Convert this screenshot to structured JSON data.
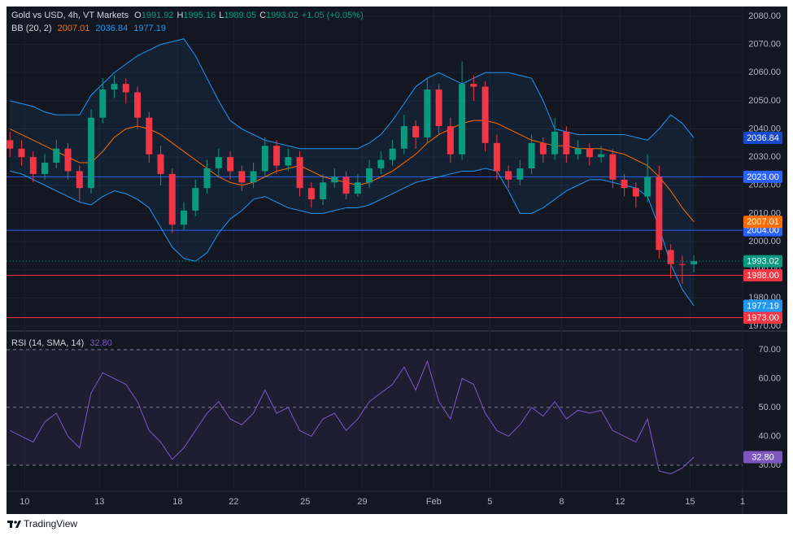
{
  "chart_data": {
    "type": "candlestick",
    "title": "Gold vs USD, 4h, VT Markets",
    "ohlc_legend": {
      "labels": [
        "O",
        "H",
        "L",
        "C"
      ],
      "change": "+1.05 (+0.05%)"
    },
    "bb_label": "BB (20, 2)",
    "rsi_label": "RSI (14, SMA, 14)",
    "brand": "TradingView",
    "xlim": [
      -0.3,
      63.2
    ],
    "xticks": [
      {
        "value": 1.26,
        "label": "10"
      },
      {
        "value": 7.72,
        "label": "13"
      },
      {
        "value": 14.46,
        "label": "18"
      },
      {
        "value": 19.3,
        "label": "22"
      },
      {
        "value": 25.47,
        "label": "25"
      },
      {
        "value": 30.39,
        "label": "29"
      },
      {
        "value": 36.56,
        "label": "Feb"
      },
      {
        "value": 41.4,
        "label": "5"
      },
      {
        "value": 47.58,
        "label": "8"
      },
      {
        "value": 52.63,
        "label": "12"
      },
      {
        "value": 58.67,
        "label": "15"
      },
      {
        "value": 63.2,
        "label": "1"
      }
    ],
    "ylim": [
      1968.8,
      2082.9
    ],
    "yticks": [
      {
        "value": 1970,
        "label": "1970.00"
      },
      {
        "value": 1980,
        "label": "1980.00"
      },
      {
        "value": 1990,
        "label": "1990.00"
      },
      {
        "value": 2000,
        "label": "2000.00"
      },
      {
        "value": 2010,
        "label": "2010.00"
      },
      {
        "value": 2020,
        "label": "2020.00"
      },
      {
        "value": 2030,
        "label": "2030.00"
      },
      {
        "value": 2040,
        "label": "2040.00"
      },
      {
        "value": 2050,
        "label": "2050.00"
      },
      {
        "value": 2060,
        "label": "2060.00"
      },
      {
        "value": 2070,
        "label": "2070.00"
      },
      {
        "value": 2080,
        "label": "2080.00"
      }
    ],
    "up_color": "#089981",
    "down_color": "#f23645",
    "candles": {
      "open": [
        2036,
        2033,
        2030,
        2024,
        2028,
        2033,
        2025,
        2019,
        2044,
        2054,
        2056,
        2053,
        2044,
        2031,
        2024,
        2006,
        2011,
        2019,
        2026,
        2030,
        2025,
        2021,
        2025,
        2034,
        2027,
        2030,
        2019,
        2015,
        2021,
        2023,
        2017,
        2021,
        2026,
        2029,
        2033,
        2041,
        2037,
        2054,
        2041,
        2031,
        2056,
        2055,
        2035,
        2025,
        2022,
        2026,
        2035,
        2031,
        2039,
        2031,
        2033,
        2030,
        2031,
        2022,
        2019,
        2016,
        2023,
        1997,
        1992,
        1991.92
      ],
      "high": [
        2039,
        2036,
        2032,
        2031,
        2036,
        2035,
        2027,
        2047,
        2058,
        2059,
        2058,
        2055,
        2046,
        2034,
        2026,
        2014,
        2022,
        2029,
        2033,
        2032,
        2027,
        2028,
        2037,
        2036,
        2033,
        2032,
        2021,
        2024,
        2026,
        2025,
        2024,
        2029,
        2032,
        2036,
        2045,
        2043,
        2058,
        2056,
        2044,
        2064,
        2059,
        2057,
        2038,
        2027,
        2029,
        2038,
        2037,
        2044,
        2041,
        2036,
        2035,
        2034,
        2033,
        2024,
        2021,
        2031,
        2027,
        1999,
        1995,
        1995.16
      ],
      "low": [
        2030,
        2027,
        2021,
        2022,
        2026,
        2022,
        2014,
        2017,
        2042,
        2051,
        2049,
        2040,
        2028,
        2020,
        2003,
        2004,
        2009,
        2017,
        2023,
        2022,
        2018,
        2019,
        2023,
        2024,
        2025,
        2016,
        2012,
        2013,
        2019,
        2015,
        2016,
        2019,
        2024,
        2027,
        2031,
        2033,
        2035,
        2038,
        2028,
        2029,
        2050,
        2032,
        2022,
        2019,
        2020,
        2024,
        2028,
        2029,
        2028,
        2029,
        2027,
        2028,
        2019,
        2016,
        2012,
        2014,
        1994,
        1987,
        1985,
        1989.05
      ],
      "close": [
        2033,
        2030,
        2024,
        2028,
        2033,
        2025,
        2019,
        2044,
        2054,
        2056,
        2053,
        2044,
        2031,
        2024,
        2006,
        2011,
        2019,
        2026,
        2030,
        2025,
        2021,
        2025,
        2034,
        2027,
        2030,
        2019,
        2015,
        2021,
        2023,
        2017,
        2021,
        2026,
        2029,
        2033,
        2041,
        2037,
        2054,
        2041,
        2031,
        2056,
        2055,
        2035,
        2025,
        2022,
        2026,
        2035,
        2031,
        2039,
        2031,
        2033,
        2030,
        2031,
        2022,
        2019,
        2016,
        2023,
        1997,
        1992,
        1991.97,
        1993.02
      ]
    },
    "bb": {
      "fill": "rgba(33,150,243,0.08)",
      "upper": {
        "color": "#2196f3",
        "values": [
          2050,
          2049,
          2048,
          2046,
          2045,
          2045,
          2045,
          2052,
          2056,
          2060,
          2063,
          2066,
          2068,
          2070,
          2071,
          2072,
          2066,
          2058,
          2050,
          2043,
          2040,
          2038,
          2036,
          2035,
          2034,
          2033,
          2033,
          2033,
          2033,
          2033,
          2033,
          2035,
          2038,
          2043,
          2049,
          2055,
          2058,
          2060,
          2058,
          2056,
          2058,
          2060,
          2060,
          2060,
          2059,
          2058,
          2050,
          2040,
          2039,
          2038,
          2038,
          2038,
          2038,
          2038,
          2037,
          2036,
          2040,
          2045,
          2042,
          2036.84
        ]
      },
      "middle": {
        "color": "#ff6d00",
        "values": [
          2040,
          2038,
          2036,
          2034,
          2032,
          2030,
          2028,
          2028,
          2032,
          2037,
          2040,
          2041,
          2040,
          2038,
          2035,
          2032,
          2029,
          2026,
          2023,
          2021,
          2020,
          2021,
          2023,
          2025,
          2026,
          2027,
          2025,
          2023,
          2022,
          2021,
          2020,
          2021,
          2023,
          2025,
          2028,
          2031,
          2035,
          2038,
          2040,
          2042,
          2043,
          2043,
          2042,
          2040,
          2038,
          2036,
          2035,
          2034,
          2034,
          2033,
          2033,
          2033,
          2032,
          2031,
          2029,
          2027,
          2023,
          2018,
          2012,
          2007.01
        ]
      },
      "lower": {
        "color": "#2196f3",
        "values": [
          2025,
          2024,
          2022,
          2020,
          2018,
          2016,
          2014,
          2013,
          2016,
          2018,
          2017,
          2015,
          2012,
          2005,
          1998,
          1994,
          1993,
          1996,
          2003,
          2008,
          2011,
          2015,
          2016,
          2014,
          2012,
          2011,
          2010,
          2010,
          2011,
          2012,
          2012,
          2013,
          2015,
          2017,
          2019,
          2021,
          2022,
          2023,
          2024,
          2025,
          2025,
          2026,
          2025,
          2018,
          2010,
          2010,
          2012,
          2015,
          2018,
          2020,
          2022,
          2022,
          2021,
          2020,
          2019,
          2016,
          2005,
          1992,
          1983,
          1977.19
        ]
      }
    },
    "hlines": [
      {
        "value": 2023,
        "label": "2023.00",
        "color": "#2962ff"
      },
      {
        "value": 2004,
        "label": "2004.00",
        "color": "#2962ff"
      },
      {
        "value": 1988,
        "label": "1988.00",
        "color": "#f23645"
      },
      {
        "value": 1973,
        "label": "1973.00",
        "color": "#f23645"
      }
    ],
    "rsi": {
      "color": "#7e57c2",
      "ylim": [
        22.1,
        75.6
      ],
      "yticks": [
        {
          "value": 30,
          "label": "30.00"
        },
        {
          "value": 40,
          "label": "40.00"
        },
        {
          "value": 50,
          "label": "50.00"
        },
        {
          "value": 60,
          "label": "60.00"
        },
        {
          "value": 70,
          "label": "70.00"
        }
      ],
      "levels": [
        30,
        50,
        70
      ],
      "values": [
        42,
        40,
        38,
        45,
        48,
        40,
        36,
        55,
        62,
        60,
        58,
        52,
        42,
        38,
        32,
        36,
        42,
        48,
        52,
        46,
        44,
        48,
        56,
        48,
        50,
        42,
        40,
        46,
        48,
        42,
        46,
        52,
        55,
        58,
        64,
        56,
        66,
        52,
        46,
        60,
        58,
        48,
        42,
        40,
        44,
        50,
        47,
        52,
        46,
        49,
        48,
        49,
        42,
        40,
        38,
        46,
        28,
        27,
        29,
        32.8
      ],
      "last_value_label": "32.80"
    }
  }
}
